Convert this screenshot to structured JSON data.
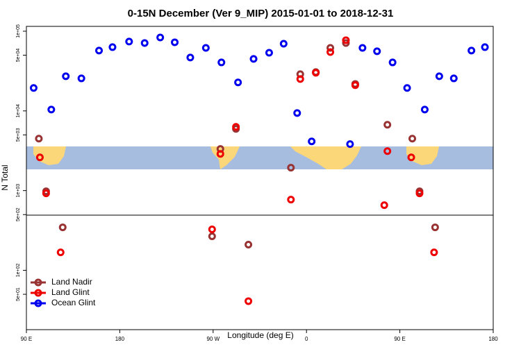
{
  "chart_data": {
    "type": "scatter",
    "title": "0-15N December (Ver 9_MIP)   2015-01-01 to 2018-12-31",
    "x_label": "Longitude (deg E)",
    "y_label": "N Total",
    "log_y": true,
    "legend": "bottom-left",
    "xlim": [
      90,
      540
    ],
    "xticks": [
      {
        "value": 90,
        "label": "90 E"
      },
      {
        "value": 180,
        "label": "180"
      },
      {
        "value": 270,
        "label": "90 W"
      },
      {
        "value": 360,
        "label": "0"
      },
      {
        "value": 450,
        "label": "90 E"
      },
      {
        "value": 540,
        "label": "180"
      }
    ],
    "ylim": [
      18,
      115000
    ],
    "yticks": [
      {
        "value": 50,
        "label": "5e+01"
      },
      {
        "value": 100,
        "label": "1e+02"
      },
      {
        "value": 500,
        "label": "5e+02"
      },
      {
        "value": 1000,
        "label": "1e+03"
      },
      {
        "value": 5000,
        "label": "5e+03"
      },
      {
        "value": 10000,
        "label": "1e+04"
      },
      {
        "value": 50000,
        "label": "5e+04"
      },
      {
        "value": 100000,
        "label": "1e+05"
      }
    ],
    "series": [
      {
        "name": "Land Nadir",
        "color": "#993333",
        "x": [
          102,
          109,
          125,
          269,
          277,
          292,
          304,
          345,
          354,
          369,
          383,
          398,
          407,
          438,
          462,
          469,
          484
        ],
        "values": [
          4490,
          980,
          346,
          267,
          3330,
          5940,
          210,
          1940,
          28900,
          30700,
          61800,
          71100,
          21800,
          6700,
          4490,
          980,
          346
        ]
      },
      {
        "name": "Land Glint",
        "color": "#ee0000",
        "x": [
          103,
          109,
          123,
          269,
          277,
          292,
          304,
          345,
          354,
          369,
          383,
          398,
          407,
          435,
          438,
          461,
          469,
          483
        ],
        "values": [
          2610,
          923,
          168,
          326,
          2890,
          6310,
          41,
          771,
          25100,
          30100,
          54800,
          77100,
          21000,
          656,
          3130,
          2610,
          923,
          168
        ]
      },
      {
        "name": "Ocean Glint",
        "color": "#0000ee",
        "x": [
          97,
          114,
          128,
          143,
          160,
          173,
          189,
          204,
          219,
          233,
          248,
          263,
          278,
          294,
          309,
          324,
          338,
          351,
          365,
          402,
          414,
          428,
          443,
          457,
          474,
          488,
          502,
          519,
          532
        ],
        "values": [
          19400,
          10400,
          27200,
          25600,
          57100,
          63100,
          74100,
          71100,
          83500,
          72600,
          46800,
          61800,
          40600,
          22800,
          44900,
          53700,
          69700,
          9400,
          4140,
          3830,
          61800,
          56000,
          40600,
          19400,
          10400,
          27200,
          25600,
          57100,
          63100
        ]
      }
    ]
  }
}
